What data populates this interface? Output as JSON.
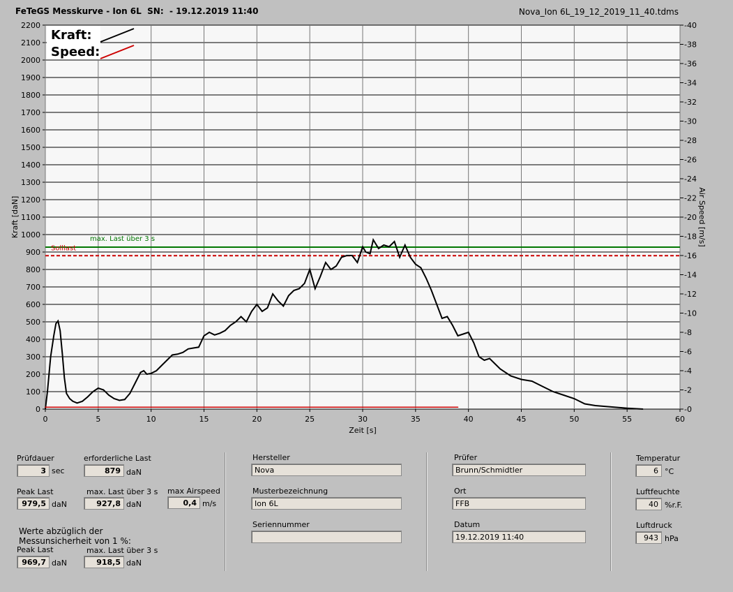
{
  "title": "FeTeGS Messkurve - Ion 6L  SN:  - 19.12.2019 11:40",
  "filename": "Nova_Ion 6L_19_12_2019_11_40.tdms",
  "chart_data": {
    "type": "line",
    "xlabel": "Zeit [s]",
    "ylabel": "Kraft [daN]",
    "y2label": "Air Speed [m/s]",
    "xlim": [
      0,
      60
    ],
    "ylim": [
      0,
      2200
    ],
    "y2lim": [
      0,
      40
    ],
    "x_ticks": [
      "0",
      "5",
      "10",
      "15",
      "20",
      "25",
      "30",
      "35",
      "40",
      "45",
      "50",
      "55",
      "60"
    ],
    "y_ticks": [
      "0",
      "100",
      "200",
      "300",
      "400",
      "500",
      "600",
      "700",
      "800",
      "900",
      "1000",
      "1100",
      "1200",
      "1300",
      "1400",
      "1500",
      "1600",
      "1700",
      "1800",
      "1900",
      "2000",
      "2100",
      "2200"
    ],
    "y2_ticks": [
      "0",
      "2",
      "4",
      "6",
      "8",
      "10",
      "12",
      "14",
      "16",
      "18",
      "20",
      "22",
      "24",
      "26",
      "28",
      "30",
      "32",
      "34",
      "36",
      "38",
      "40"
    ],
    "legend": [
      {
        "name": "Kraft:",
        "color": "#000000"
      },
      {
        "name": "Speed:",
        "color": "#cc0000"
      }
    ],
    "reference_lines": [
      {
        "label": "max. Last über  3 s",
        "value": 927.8,
        "color": "#007700",
        "style": "solid"
      },
      {
        "label": "Solllast",
        "value": 879,
        "color": "#cc0000",
        "style": "dashed"
      }
    ],
    "series": [
      {
        "name": "Kraft",
        "color": "#000000",
        "x": [
          0,
          0.2,
          0.5,
          0.8,
          1.0,
          1.2,
          1.4,
          1.6,
          1.8,
          2.0,
          2.3,
          2.6,
          3.0,
          3.5,
          4.0,
          4.5,
          5.0,
          5.5,
          6.0,
          6.5,
          7.0,
          7.5,
          8.0,
          8.5,
          9.0,
          9.3,
          9.6,
          10.0,
          10.5,
          11.0,
          11.5,
          12.0,
          12.5,
          13.0,
          13.5,
          14.0,
          14.5,
          15.0,
          15.5,
          16.0,
          16.5,
          17.0,
          17.5,
          18.0,
          18.5,
          19.0,
          19.5,
          20.0,
          20.5,
          21.0,
          21.5,
          22.0,
          22.5,
          23.0,
          23.5,
          24.0,
          24.5,
          25.0,
          25.5,
          26.0,
          26.5,
          27.0,
          27.5,
          28.0,
          28.5,
          29.0,
          29.5,
          30.0,
          30.3,
          30.7,
          31.0,
          31.5,
          32.0,
          32.5,
          33.0,
          33.5,
          34.0,
          34.5,
          35.0,
          35.5,
          36.0,
          36.5,
          37.0,
          37.5,
          38.0,
          38.5,
          39.0,
          39.5,
          40.0,
          40.5,
          41.0,
          41.5,
          42.0,
          42.5,
          43.0,
          44.0,
          45.0,
          46.0,
          47.0,
          48.0,
          49.0,
          50.0,
          51.0,
          52.0,
          53.0,
          54.0,
          55.0,
          56.5
        ],
        "values": [
          0,
          100,
          300,
          420,
          490,
          505,
          450,
          320,
          180,
          90,
          60,
          45,
          35,
          45,
          70,
          100,
          120,
          110,
          80,
          60,
          50,
          55,
          90,
          150,
          210,
          220,
          200,
          205,
          220,
          250,
          280,
          310,
          315,
          325,
          345,
          350,
          355,
          420,
          440,
          425,
          435,
          450,
          480,
          500,
          530,
          500,
          560,
          600,
          560,
          580,
          660,
          620,
          590,
          650,
          680,
          690,
          720,
          800,
          690,
          760,
          840,
          800,
          820,
          870,
          880,
          880,
          840,
          930,
          900,
          890,
          970,
          920,
          940,
          930,
          960,
          870,
          940,
          870,
          830,
          810,
          750,
          680,
          600,
          520,
          530,
          480,
          420,
          430,
          440,
          380,
          300,
          280,
          290,
          260,
          230,
          190,
          170,
          160,
          130,
          100,
          80,
          60,
          30,
          20,
          15,
          10,
          5,
          0
        ]
      },
      {
        "name": "Speed",
        "color": "#cc0000",
        "x": [
          0,
          39
        ],
        "values": [
          0.2,
          0.2
        ]
      }
    ]
  },
  "panel1": {
    "pruefdauer_label": "Prüfdauer",
    "pruefdauer_value": "3",
    "pruefdauer_unit": "sec",
    "erf_last_label": "erforderliche Last",
    "erf_last_value": "879",
    "erf_last_unit": "daN",
    "peak_label": "Peak Last",
    "peak_value": "979,5",
    "peak_unit": "daN",
    "maxlast_label": "max. Last über  3 s",
    "maxlast_value": "927,8",
    "maxlast_unit": "daN",
    "airspeed_label": "max Airspeed",
    "airspeed_value": "0,4",
    "airspeed_unit": "m/s",
    "note_line1": "Werte abzüglich der",
    "note_line2": "Messunsicherheit von 1   %:",
    "peak2_label": "Peak Last",
    "peak2_value": "969,7",
    "peak2_unit": "daN",
    "maxlast2_label": "max. Last über  3 s",
    "maxlast2_value": "918,5",
    "maxlast2_unit": "daN"
  },
  "panel2": {
    "hersteller_label": "Hersteller",
    "hersteller_value": "Nova",
    "muster_label": "Musterbezeichnung",
    "muster_value": "Ion 6L",
    "serien_label": "Seriennummer",
    "serien_value": ""
  },
  "panel3": {
    "pruefer_label": "Prüfer",
    "pruefer_value": "Brunn/Schmidtler",
    "ort_label": "Ort",
    "ort_value": "FFB",
    "datum_label": "Datum",
    "datum_value": "19.12.2019 11:40"
  },
  "panel4": {
    "temp_label": "Temperatur",
    "temp_value": "6",
    "temp_unit": "°C",
    "feuchte_label": "Luftfeuchte",
    "feuchte_value": "40",
    "feuchte_unit": "%r.F.",
    "druck_label": "Luftdruck",
    "druck_value": "943",
    "druck_unit": "hPa"
  }
}
